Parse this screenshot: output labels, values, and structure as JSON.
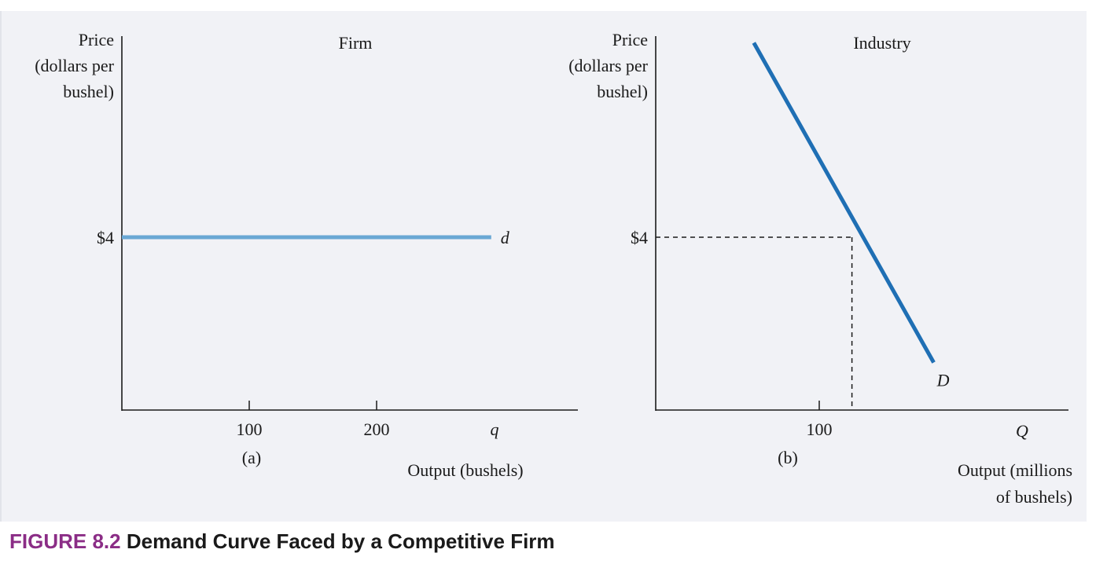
{
  "figure": {
    "number": "FIGURE 8.2",
    "title": "Demand Curve Faced by a Competitive Firm"
  },
  "colors": {
    "firm_demand": "#6aa8d4",
    "industry_demand": "#1f6fb4",
    "axis": "#1a1a1a",
    "caption_number": "#8b2d86"
  },
  "chart_data": [
    {
      "type": "line",
      "panel": "(a)",
      "title": "Firm",
      "ylabel": [
        "Price",
        "(dollars per",
        "bushel)"
      ],
      "xlabel": "Output (bushels)",
      "x_axis_symbol": "q",
      "x_ticks": [
        100,
        200
      ],
      "y_ticks": [
        {
          "value": 4,
          "label": "$4"
        }
      ],
      "xlim": [
        0,
        290
      ],
      "ylim": [
        0,
        8
      ],
      "series": [
        {
          "name": "d",
          "x": [
            0,
            290
          ],
          "y": [
            4,
            4
          ]
        }
      ]
    },
    {
      "type": "line",
      "panel": "(b)",
      "title": "Industry",
      "ylabel": [
        "Price",
        "(dollars per",
        "bushel)"
      ],
      "xlabel": [
        "Output (millions",
        "of bushels)"
      ],
      "x_axis_symbol": "Q",
      "x_ticks": [
        100
      ],
      "y_ticks": [
        {
          "value": 4,
          "label": "$4"
        }
      ],
      "xlim": [
        0,
        250
      ],
      "ylim": [
        0,
        8
      ],
      "series": [
        {
          "name": "D",
          "x": [
            60,
            170
          ],
          "y": [
            8.5,
            1.1
          ]
        }
      ],
      "reference": {
        "x": 120,
        "y": 4,
        "style": "dashed"
      }
    }
  ]
}
